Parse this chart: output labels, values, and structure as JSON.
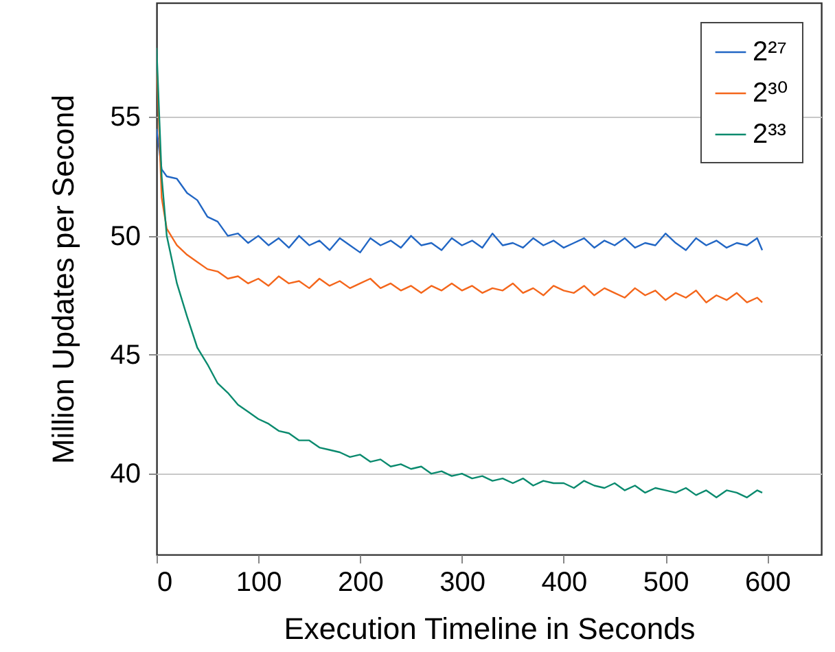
{
  "chart_data": {
    "type": "line",
    "xlabel": "Execution Timeline in Seconds",
    "ylabel": "Million Updates per Second",
    "x": [
      0,
      5,
      10,
      20,
      30,
      40,
      50,
      60,
      70,
      80,
      90,
      100,
      110,
      120,
      130,
      140,
      150,
      160,
      170,
      180,
      190,
      200,
      210,
      220,
      230,
      240,
      250,
      260,
      270,
      280,
      290,
      300,
      310,
      320,
      330,
      340,
      350,
      360,
      370,
      380,
      390,
      400,
      410,
      420,
      430,
      440,
      450,
      460,
      470,
      480,
      490,
      500,
      510,
      520,
      530,
      540,
      550,
      560,
      570,
      580,
      590,
      595
    ],
    "series": [
      {
        "name": "2²⁷",
        "color": "#2166c4",
        "values": [
          54.5,
          52.8,
          52.5,
          52.4,
          51.8,
          51.5,
          50.8,
          50.6,
          50.0,
          50.1,
          49.7,
          50.0,
          49.6,
          49.9,
          49.5,
          50.0,
          49.6,
          49.8,
          49.4,
          49.9,
          49.6,
          49.3,
          49.9,
          49.6,
          49.8,
          49.5,
          50.0,
          49.6,
          49.7,
          49.4,
          49.9,
          49.6,
          49.8,
          49.5,
          50.1,
          49.6,
          49.7,
          49.5,
          49.9,
          49.6,
          49.8,
          49.5,
          49.7,
          49.9,
          49.5,
          49.8,
          49.6,
          49.9,
          49.5,
          49.7,
          49.6,
          50.1,
          49.7,
          49.4,
          49.9,
          49.6,
          49.8,
          49.5,
          49.7,
          49.6,
          49.9,
          49.4
        ]
      },
      {
        "name": "2³⁰",
        "color": "#f4661b",
        "values": [
          57.5,
          51.6,
          50.3,
          49.6,
          49.2,
          48.9,
          48.6,
          48.5,
          48.2,
          48.3,
          48.0,
          48.2,
          47.9,
          48.3,
          48.0,
          48.1,
          47.8,
          48.2,
          47.9,
          48.1,
          47.8,
          48.0,
          48.2,
          47.8,
          48.0,
          47.7,
          47.9,
          47.6,
          47.9,
          47.7,
          48.0,
          47.7,
          47.9,
          47.6,
          47.8,
          47.7,
          48.0,
          47.6,
          47.8,
          47.5,
          47.9,
          47.7,
          47.6,
          47.9,
          47.5,
          47.8,
          47.6,
          47.4,
          47.8,
          47.5,
          47.7,
          47.3,
          47.6,
          47.4,
          47.7,
          47.2,
          47.5,
          47.3,
          47.6,
          47.2,
          47.4,
          47.2
        ]
      },
      {
        "name": "2³³",
        "color": "#0a8a6e",
        "values": [
          57.9,
          52.5,
          50.0,
          48.0,
          46.6,
          45.3,
          44.6,
          43.8,
          43.4,
          42.9,
          42.6,
          42.3,
          42.1,
          41.8,
          41.7,
          41.4,
          41.4,
          41.1,
          41.0,
          40.9,
          40.7,
          40.8,
          40.5,
          40.6,
          40.3,
          40.4,
          40.2,
          40.3,
          40.0,
          40.1,
          39.9,
          40.0,
          39.8,
          39.9,
          39.7,
          39.8,
          39.6,
          39.8,
          39.5,
          39.7,
          39.6,
          39.6,
          39.4,
          39.7,
          39.5,
          39.4,
          39.6,
          39.3,
          39.5,
          39.2,
          39.4,
          39.3,
          39.2,
          39.4,
          39.1,
          39.3,
          39.0,
          39.3,
          39.2,
          39.0,
          39.3,
          39.2
        ]
      }
    ],
    "xlim": [
      0,
      653
    ],
    "xticks": [
      0,
      100,
      200,
      300,
      400,
      500,
      600
    ],
    "ylim": [
      36.6,
      59.8
    ],
    "yticks": [
      40,
      45,
      50,
      55
    ],
    "grid": "y",
    "legend": "top right"
  }
}
